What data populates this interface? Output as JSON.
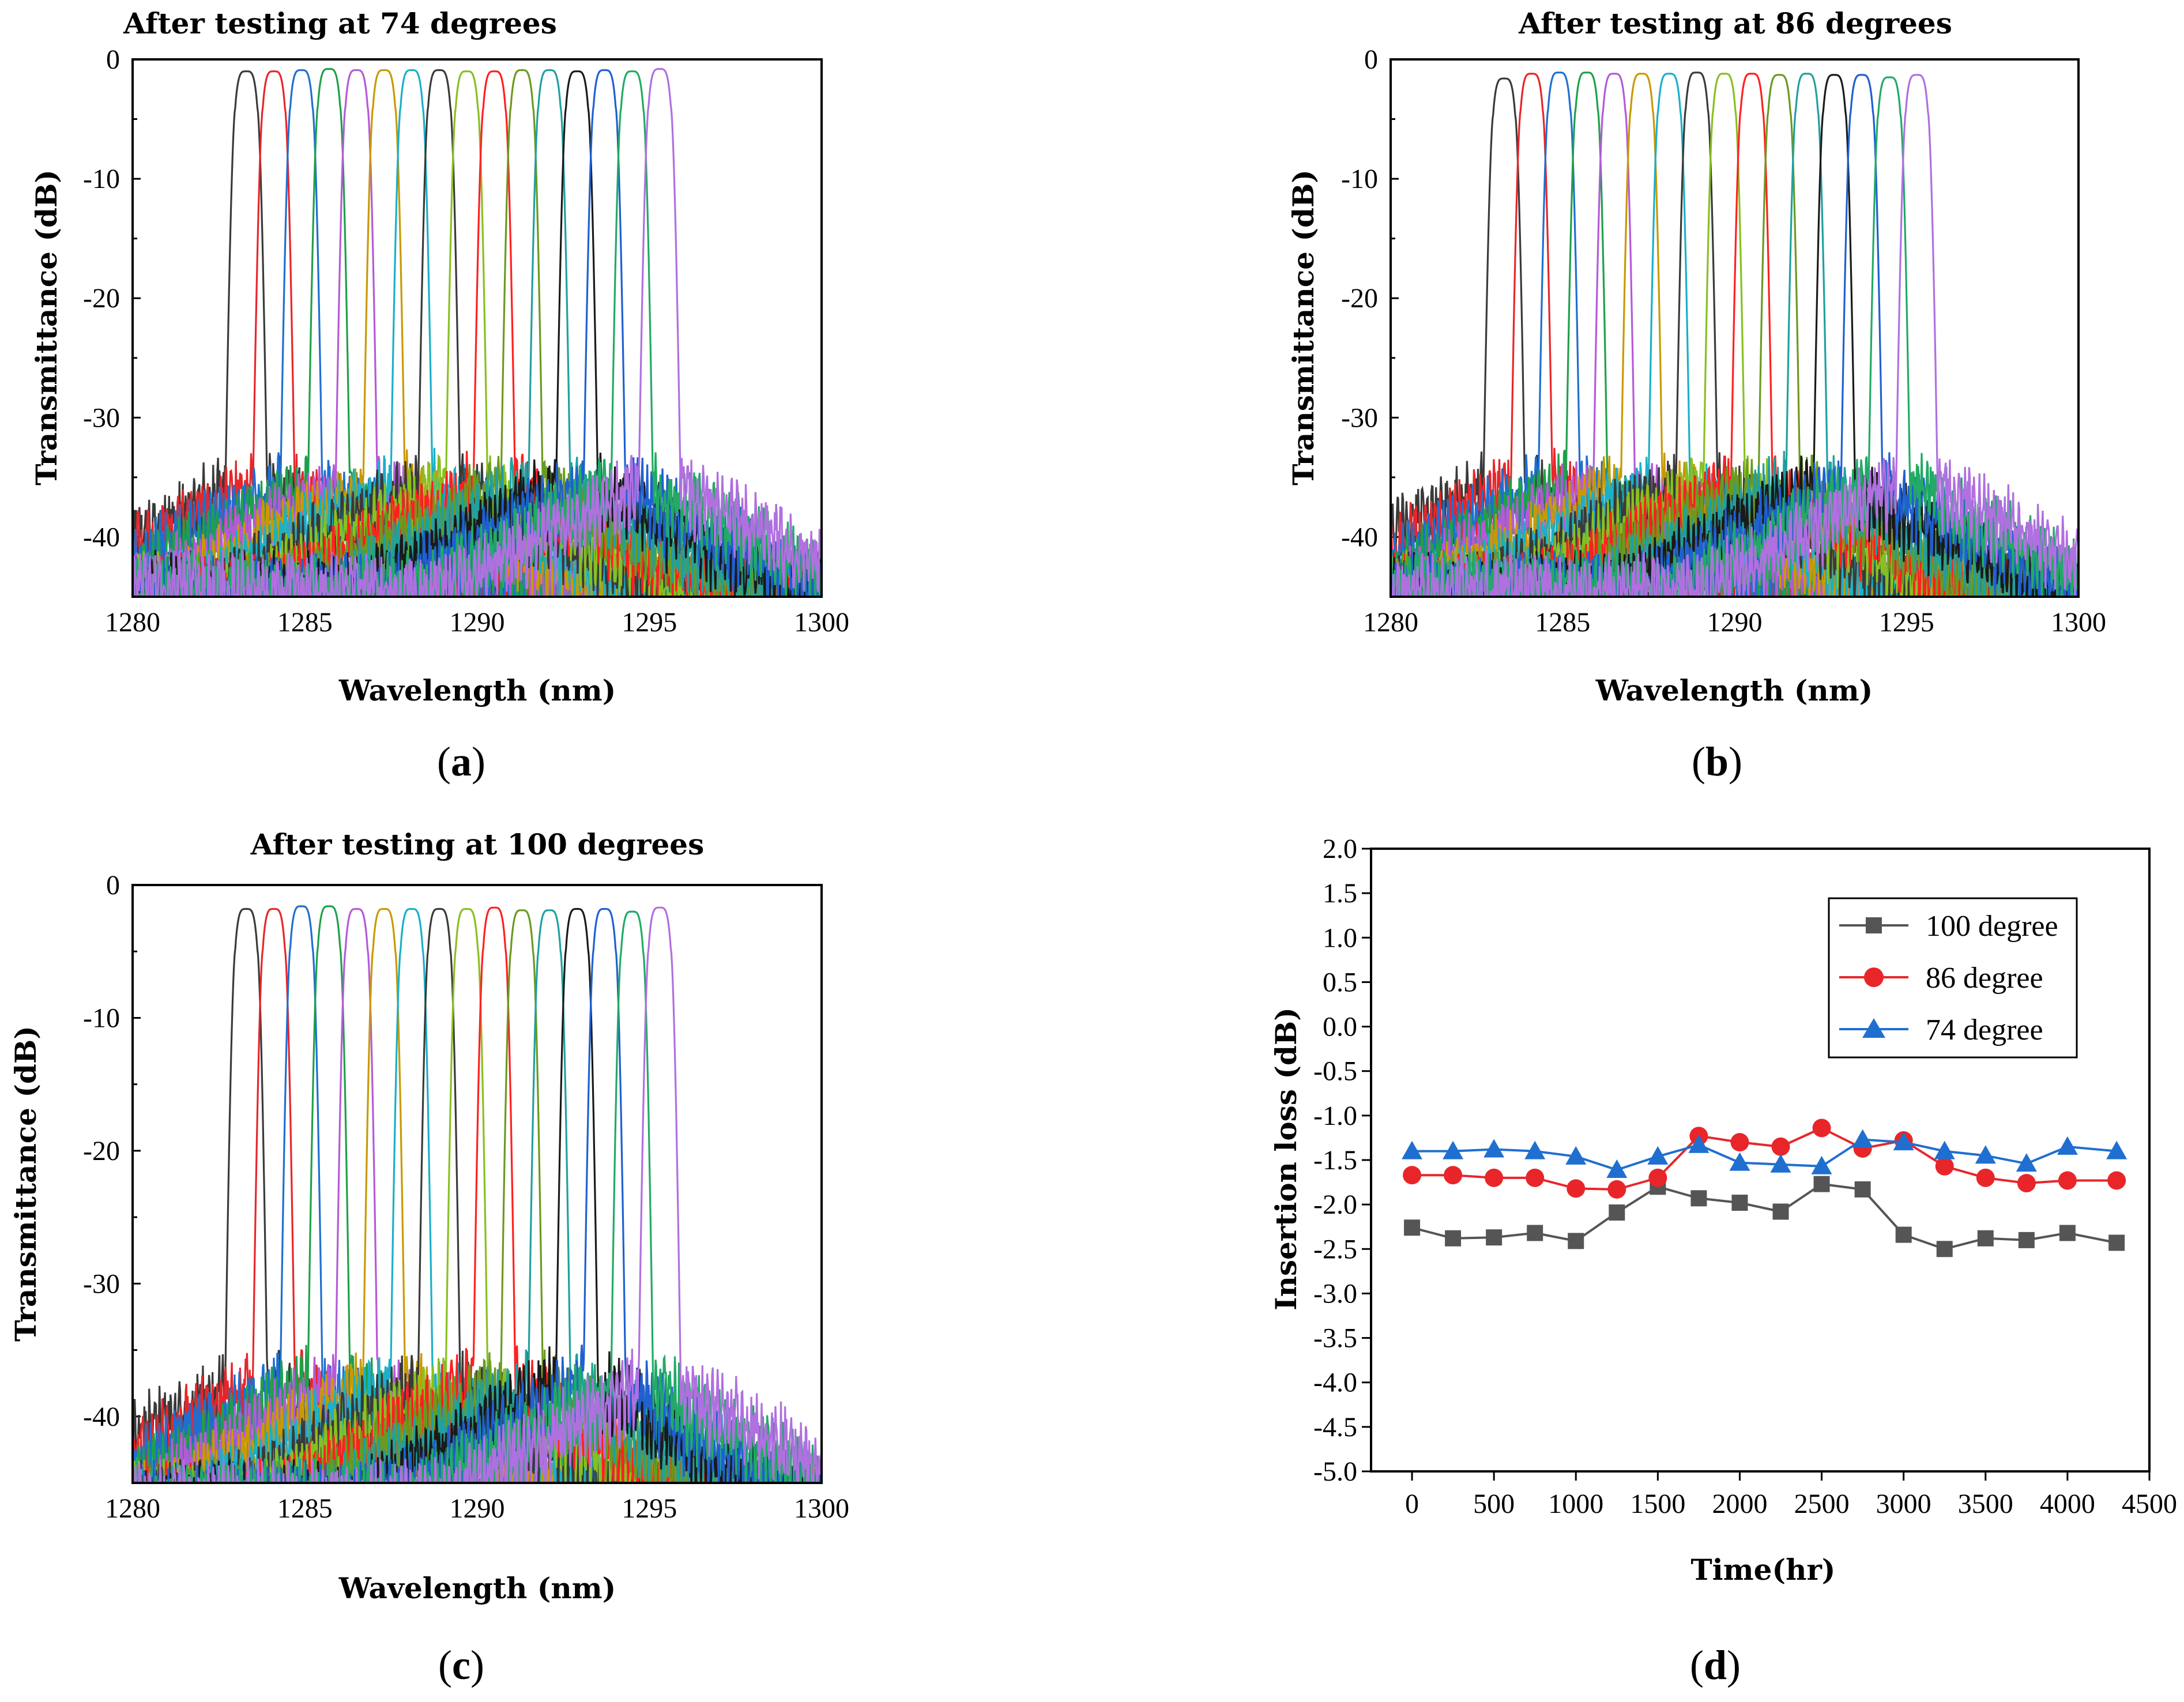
{
  "colors": {
    "spectra": [
      "#3a3a3a",
      "#e8262a",
      "#1f6fd0",
      "#1fa04a",
      "#b45ad8",
      "#c89a00",
      "#1ab0c8",
      "#3a3a3a",
      "#88c020",
      "#ff2020",
      "#6a9a20",
      "#20a0a0",
      "#1a1a1a",
      "#2060d0",
      "#22aa66",
      "#b070e0"
    ],
    "series_100": "#555555",
    "series_86": "#e8262a",
    "series_74": "#1f6fd0"
  },
  "chart_data": [
    {
      "id": "a",
      "type": "line",
      "title": "After testing at 74 degrees",
      "xlabel": "Wavelength (nm)",
      "ylabel": "Transmittance (dB)",
      "xlim": [
        1280,
        1300
      ],
      "ylim": [
        -45,
        0
      ],
      "xticks": [
        1280,
        1285,
        1290,
        1295,
        1300
      ],
      "yticks": [
        0,
        -10,
        -20,
        -30,
        -40
      ],
      "panel_label": "a",
      "channel_centers_nm": [
        1283.3,
        1284.1,
        1284.9,
        1285.7,
        1286.5,
        1287.3,
        1288.1,
        1288.9,
        1289.7,
        1290.5,
        1291.3,
        1292.1,
        1292.9,
        1293.7,
        1294.5,
        1295.3
      ],
      "channel_peaks_db": [
        -1.0,
        -1.0,
        -0.9,
        -0.8,
        -0.9,
        -0.9,
        -0.9,
        -0.9,
        -1.0,
        -1.0,
        -0.9,
        -0.9,
        -1.0,
        -0.9,
        -1.0,
        -0.8
      ],
      "floor_db": -36
    },
    {
      "id": "b",
      "type": "line",
      "title": "After testing  at 86 degrees",
      "xlabel": "Wavelength (nm)",
      "ylabel": "Transmittance (dB)",
      "xlim": [
        1280,
        1300
      ],
      "ylim": [
        -45,
        0
      ],
      "xticks": [
        1280,
        1285,
        1290,
        1295,
        1300
      ],
      "yticks": [
        0,
        -10,
        -20,
        -30,
        -40
      ],
      "panel_label": "b",
      "channel_centers_nm": [
        1283.3,
        1284.1,
        1284.9,
        1285.7,
        1286.5,
        1287.3,
        1288.1,
        1288.9,
        1289.7,
        1290.5,
        1291.3,
        1292.1,
        1292.9,
        1293.7,
        1294.5,
        1295.3
      ],
      "channel_peaks_db": [
        -1.6,
        -1.2,
        -1.1,
        -1.1,
        -1.2,
        -1.2,
        -1.2,
        -1.1,
        -1.2,
        -1.2,
        -1.3,
        -1.2,
        -1.3,
        -1.3,
        -1.5,
        -1.3
      ],
      "floor_db": -36
    },
    {
      "id": "c",
      "type": "line",
      "title": "After testing  at 100 degrees",
      "xlabel": "Wavelength (nm)",
      "ylabel": "Transmittance (dB)",
      "xlim": [
        1280,
        1300
      ],
      "ylim": [
        -45,
        0
      ],
      "xticks": [
        1280,
        1285,
        1290,
        1295,
        1300
      ],
      "yticks": [
        0,
        -10,
        -20,
        -30,
        -40
      ],
      "panel_label": "c",
      "channel_centers_nm": [
        1283.3,
        1284.1,
        1284.9,
        1285.7,
        1286.5,
        1287.3,
        1288.1,
        1288.9,
        1289.7,
        1290.5,
        1291.3,
        1292.1,
        1292.9,
        1293.7,
        1294.5,
        1295.3
      ],
      "channel_peaks_db": [
        -1.8,
        -1.8,
        -1.6,
        -1.6,
        -1.8,
        -1.8,
        -1.8,
        -1.8,
        -1.8,
        -1.7,
        -1.9,
        -1.9,
        -1.8,
        -1.8,
        -2.0,
        -1.7
      ],
      "floor_db": -38
    },
    {
      "id": "d",
      "type": "line",
      "title": "",
      "xlabel": "Time(hr)",
      "ylabel": "Insertion loss (dB)",
      "xlim": [
        -250,
        4500
      ],
      "ylim": [
        -5.0,
        2.0
      ],
      "xticks": [
        0,
        500,
        1000,
        1500,
        2000,
        2500,
        3000,
        3500,
        4000,
        4500
      ],
      "yticks": [
        "2.0",
        "1.5",
        "1.0",
        "0.5",
        "0.0",
        "-0.5",
        "-1.0",
        "-1.5",
        "-2.0",
        "-2.5",
        "-3.0",
        "-3.5",
        "-4.0",
        "-4.5",
        "-5.0"
      ],
      "panel_label": "d",
      "x": [
        0,
        250,
        500,
        750,
        1000,
        1250,
        1500,
        1750,
        2000,
        2250,
        2500,
        2750,
        3000,
        3250,
        3500,
        3750,
        4000,
        4300
      ],
      "series": [
        {
          "name": "100 degree",
          "marker": "square",
          "values": [
            -2.26,
            -2.38,
            -2.37,
            -2.32,
            -2.41,
            -2.09,
            -1.8,
            -1.93,
            -1.98,
            -2.08,
            -1.77,
            -1.83,
            -2.34,
            -2.5,
            -2.38,
            -2.4,
            -2.32,
            -2.43
          ]
        },
        {
          "name": "86 degree",
          "marker": "circle",
          "values": [
            -1.67,
            -1.67,
            -1.7,
            -1.7,
            -1.82,
            -1.83,
            -1.7,
            -1.23,
            -1.3,
            -1.35,
            -1.14,
            -1.37,
            -1.28,
            -1.57,
            -1.7,
            -1.76,
            -1.73,
            -1.73
          ]
        },
        {
          "name": "74 degree",
          "marker": "triangle",
          "values": [
            -1.4,
            -1.4,
            -1.38,
            -1.4,
            -1.46,
            -1.61,
            -1.46,
            -1.33,
            -1.53,
            -1.55,
            -1.57,
            -1.27,
            -1.3,
            -1.4,
            -1.45,
            -1.54,
            -1.35,
            -1.4
          ]
        }
      ]
    }
  ]
}
